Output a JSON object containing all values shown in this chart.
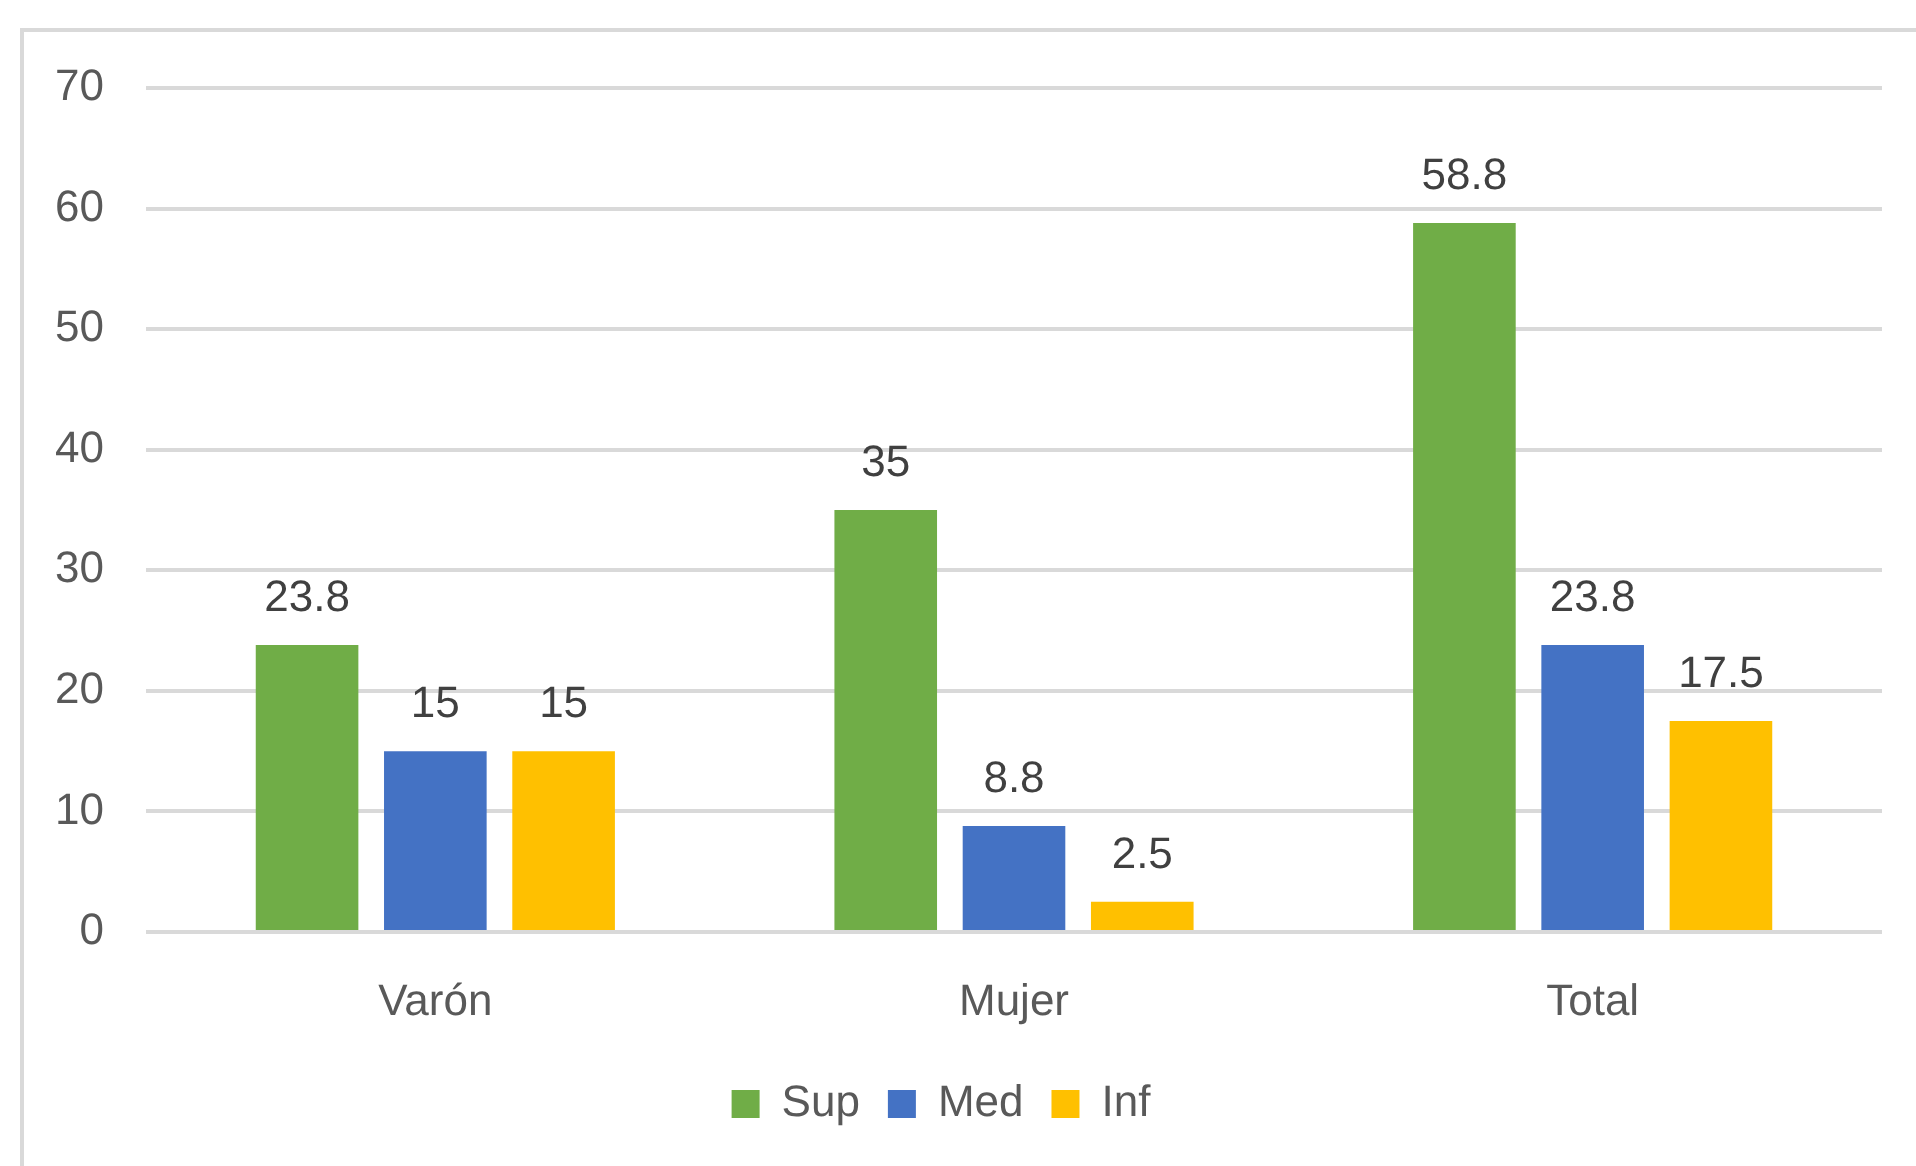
{
  "chart_data": {
    "type": "bar",
    "categories": [
      "Varón",
      "Mujer",
      "Total"
    ],
    "series": [
      {
        "name": "Sup",
        "color": "#70ad47",
        "values": [
          23.8,
          35,
          58.8
        ]
      },
      {
        "name": "Med",
        "color": "#4472c4",
        "values": [
          15,
          8.8,
          23.8
        ]
      },
      {
        "name": "Inf",
        "color": "#ffc000",
        "values": [
          15,
          2.5,
          17.5
        ]
      }
    ],
    "ylim": [
      0,
      70
    ],
    "yticks": [
      0,
      10,
      20,
      30,
      40,
      50,
      60,
      70
    ],
    "grid": "y",
    "legend": "bottom",
    "data_labels": true
  }
}
